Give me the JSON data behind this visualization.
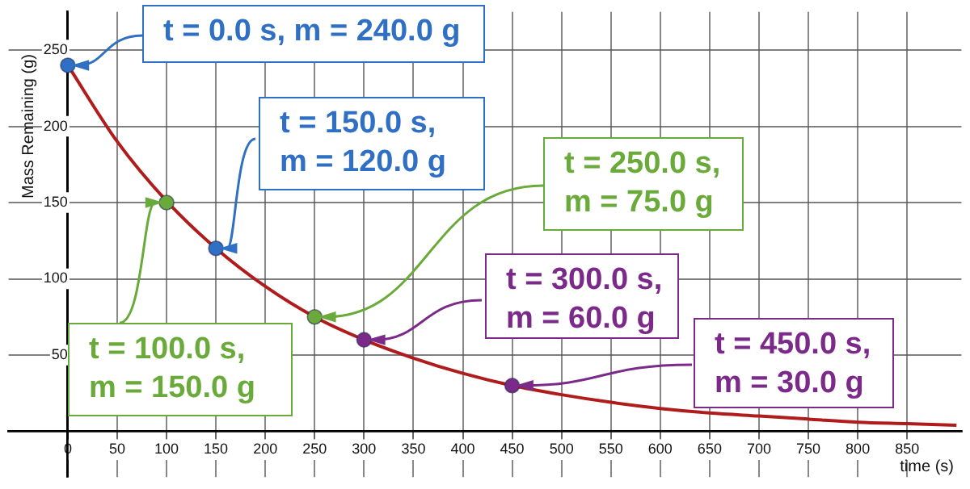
{
  "chart_data": {
    "type": "line",
    "xlabel": "time (s)",
    "ylabel": "Mass Remaining (g)",
    "xlim": [
      -60,
      905
    ],
    "ylim": [
      -30,
      275
    ],
    "xticks": [
      0,
      50,
      100,
      150,
      200,
      250,
      300,
      350,
      400,
      450,
      500,
      550,
      600,
      650,
      700,
      750,
      800,
      850
    ],
    "yticks": [
      50,
      100,
      150,
      200,
      250
    ],
    "grid": true,
    "legend": false,
    "series": [
      {
        "type": "line",
        "color": "#b01c1c",
        "marker": "none",
        "x": [
          0,
          50,
          100,
          150,
          200,
          250,
          300,
          350,
          400,
          450,
          500,
          550,
          600,
          650,
          700,
          750,
          800,
          850,
          900
        ],
        "values": [
          240,
          190,
          151,
          120,
          95,
          75,
          60,
          48,
          38,
          30,
          24,
          19,
          15,
          12,
          10,
          8,
          6,
          5,
          4
        ]
      },
      {
        "type": "scatter",
        "marker": "circle",
        "colors": [
          "#2f6fc4",
          "#6aaa3a",
          "#2f6fc4",
          "#6aaa3a",
          "#7b2a8a",
          "#7b2a8a"
        ],
        "x": [
          0,
          100,
          150,
          250,
          300,
          450
        ],
        "values": [
          240,
          150,
          120,
          75,
          60,
          30
        ]
      }
    ],
    "annotations": [
      {
        "text": "t = 0.0 s, m = 240.0 g",
        "x": 0,
        "y": 240
      },
      {
        "text": "t = 100.0 s,\nm = 150.0 g",
        "x": 100,
        "y": 150
      },
      {
        "text": "t = 150.0 s,\nm = 120.0 g",
        "x": 150,
        "y": 120
      },
      {
        "text": "t = 250.0 s,\nm = 75.0 g",
        "x": 250,
        "y": 75
      },
      {
        "text": "t = 300.0 s,\nm = 60.0 g",
        "x": 300,
        "y": 60
      },
      {
        "text": "t = 450.0 s,\nm = 30.0 g",
        "x": 450,
        "y": 30
      }
    ]
  }
}
